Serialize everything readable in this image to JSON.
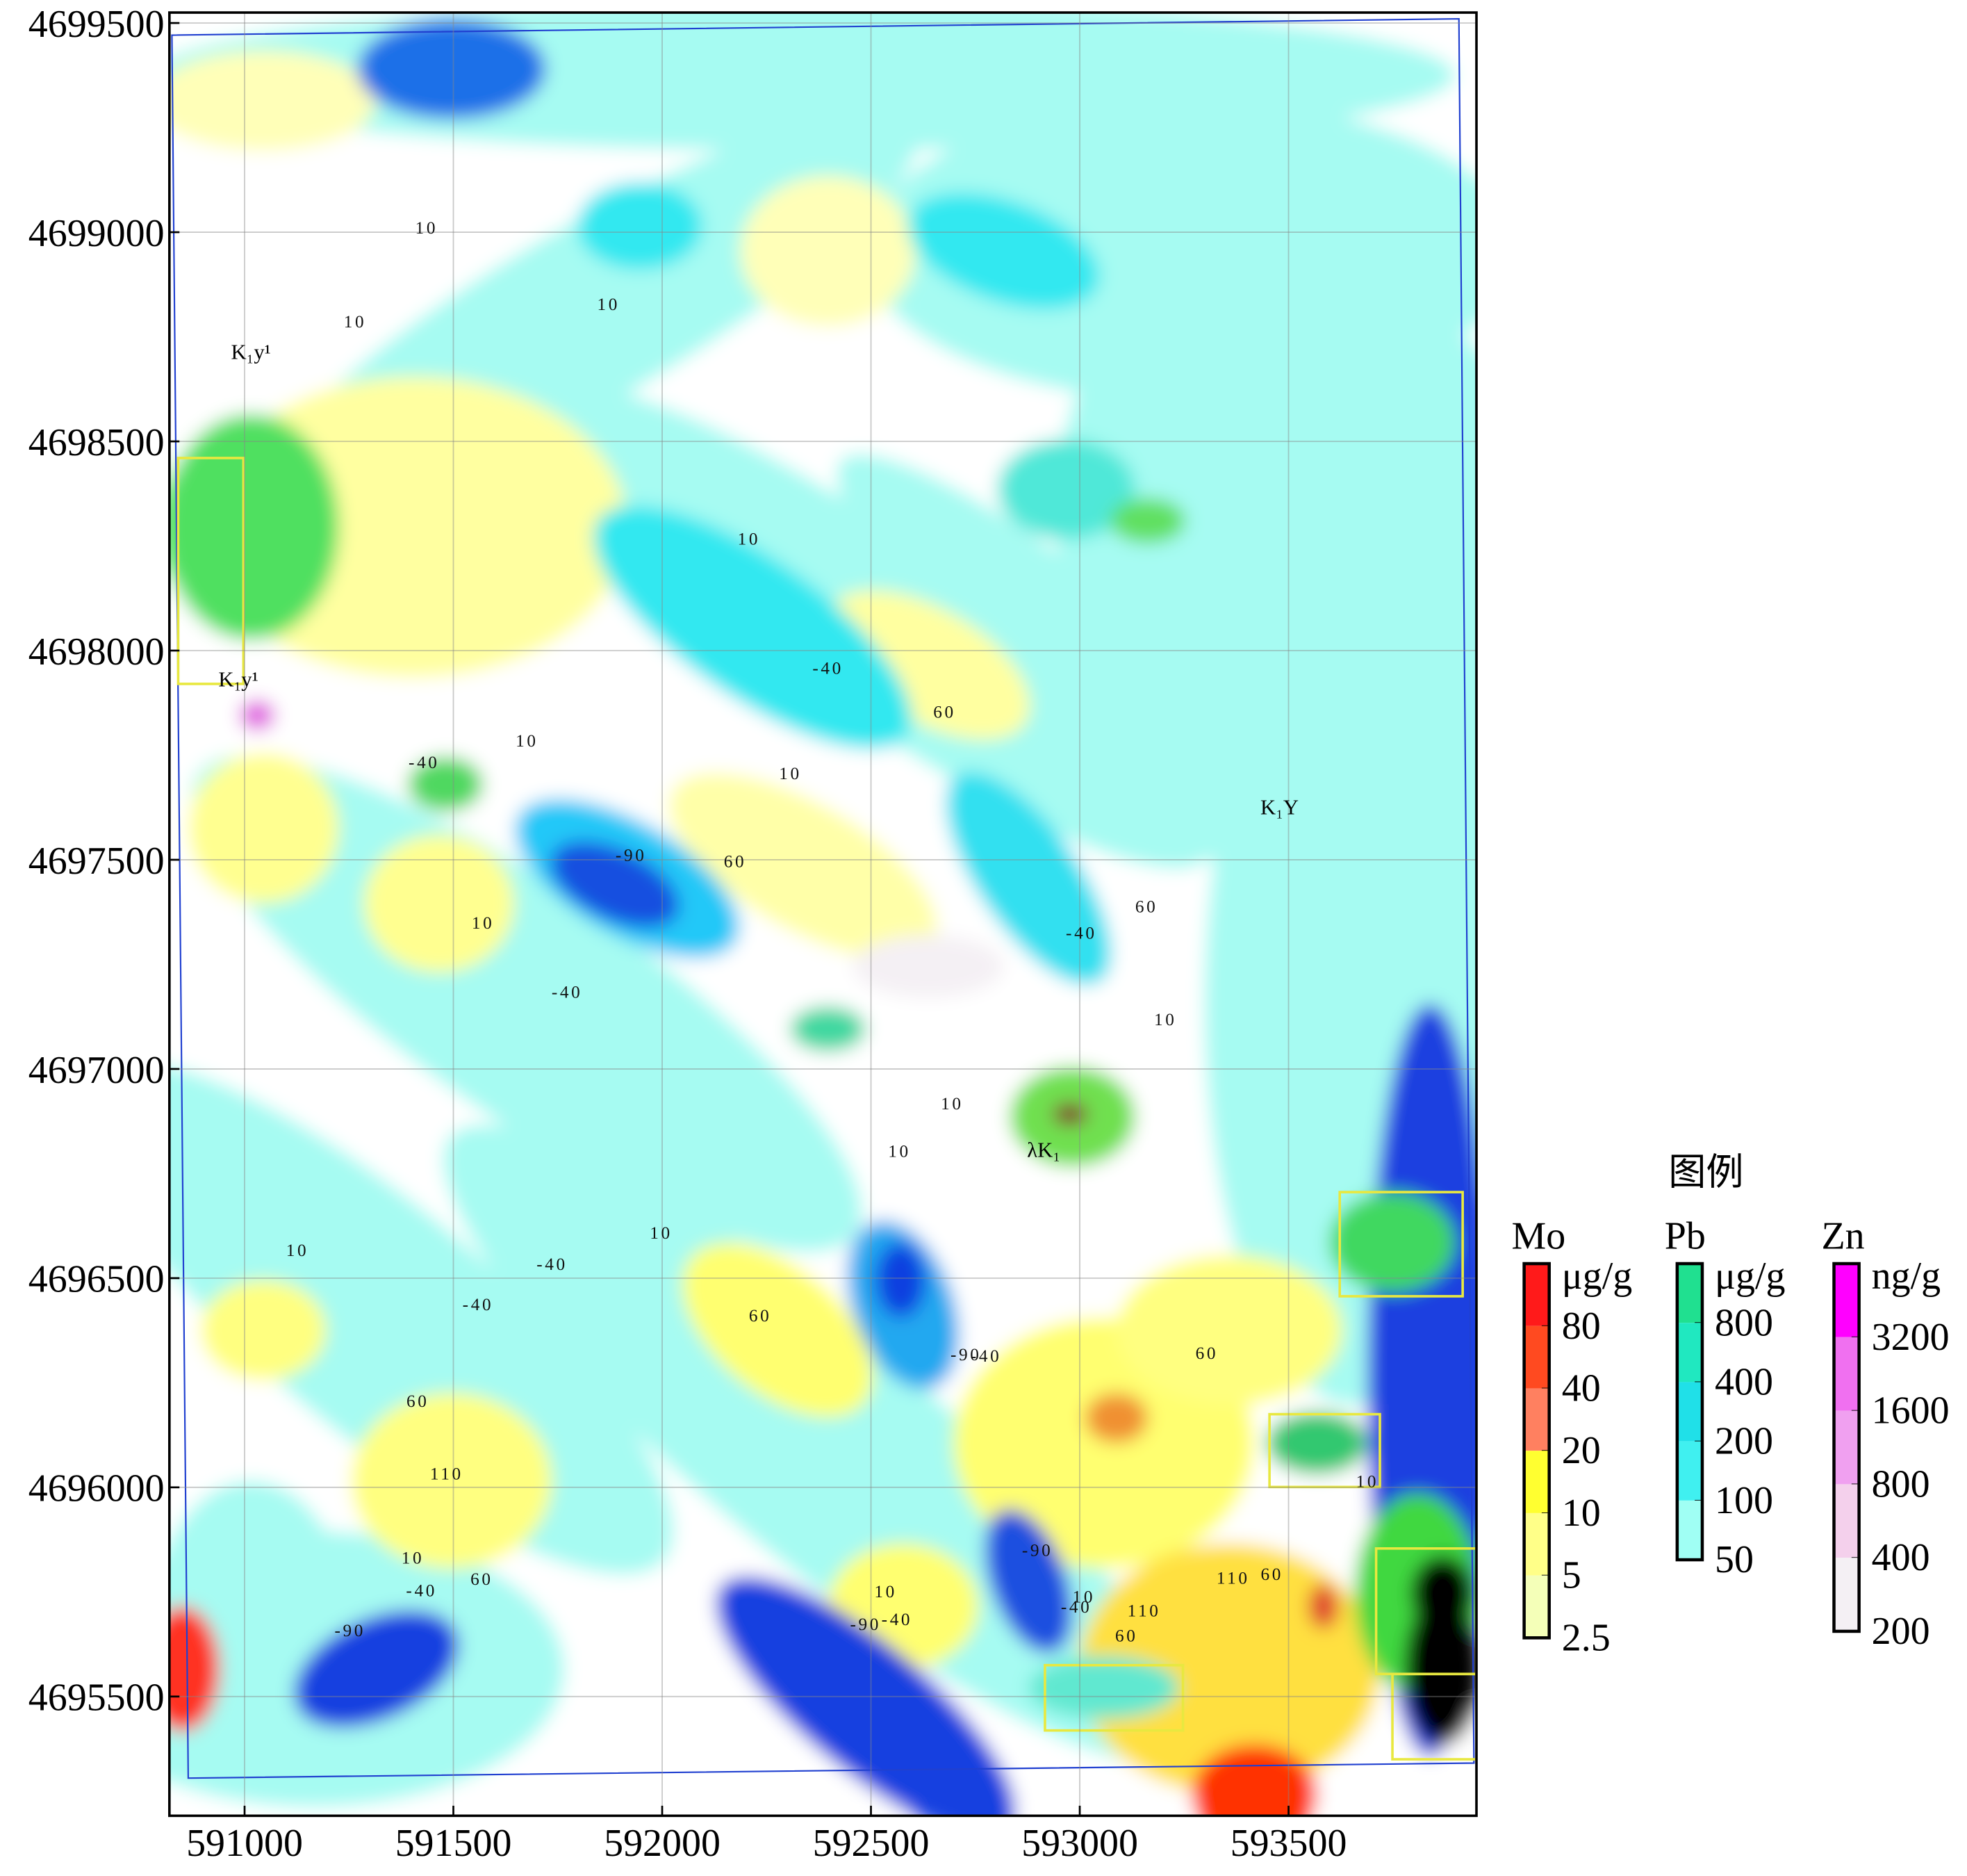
{
  "map": {
    "axes": {
      "xlim": [
        590820,
        593950
      ],
      "ylim": [
        4695215,
        4699525
      ],
      "xticks": [
        591000,
        591500,
        592000,
        592500,
        593000,
        593500
      ],
      "yticks": [
        4695500,
        4696000,
        4696500,
        4697000,
        4697500,
        4698000,
        4698500,
        4699000,
        4699500
      ],
      "grid": true
    },
    "contour_labels": [
      10,
      10,
      10,
      10,
      -40,
      60,
      10,
      -40,
      10,
      -90,
      60,
      10,
      60,
      -40,
      -40,
      10,
      10,
      10,
      10,
      10,
      -40,
      -40,
      60,
      -90,
      -40,
      60,
      60,
      110,
      10,
      10,
      -40,
      60,
      -90,
      10,
      -90,
      -40,
      10,
      -40,
      110,
      110,
      60,
      60,
      -90
    ],
    "geology_labels": [
      "K₁y¹",
      "K₁y¹",
      "K₁Y",
      "λK₁"
    ]
  },
  "legend": {
    "title": "图例",
    "groups": [
      {
        "element": "Mo",
        "unit": "μg/g",
        "levels": [
          80,
          40,
          20,
          10,
          5,
          2.5
        ],
        "colors": [
          "#ff1a1a",
          "#ff4a20",
          "#ff8060",
          "#ffff30",
          "#ffff88",
          "#f4ffb8"
        ]
      },
      {
        "element": "Pb",
        "unit": "μg/g",
        "levels": [
          800,
          400,
          200,
          100,
          50
        ],
        "colors": [
          "#20e090",
          "#20e8c0",
          "#20e0e8",
          "#40f0f0",
          "#a0fff4"
        ]
      },
      {
        "element": "Zn",
        "unit": "ng/g",
        "levels": [
          3200,
          1600,
          800,
          400,
          200
        ],
        "colors": [
          "#ff00ff",
          "#f070f0",
          "#f0a0f0",
          "#f4d0ec",
          "#f4f0f4"
        ]
      }
    ]
  }
}
